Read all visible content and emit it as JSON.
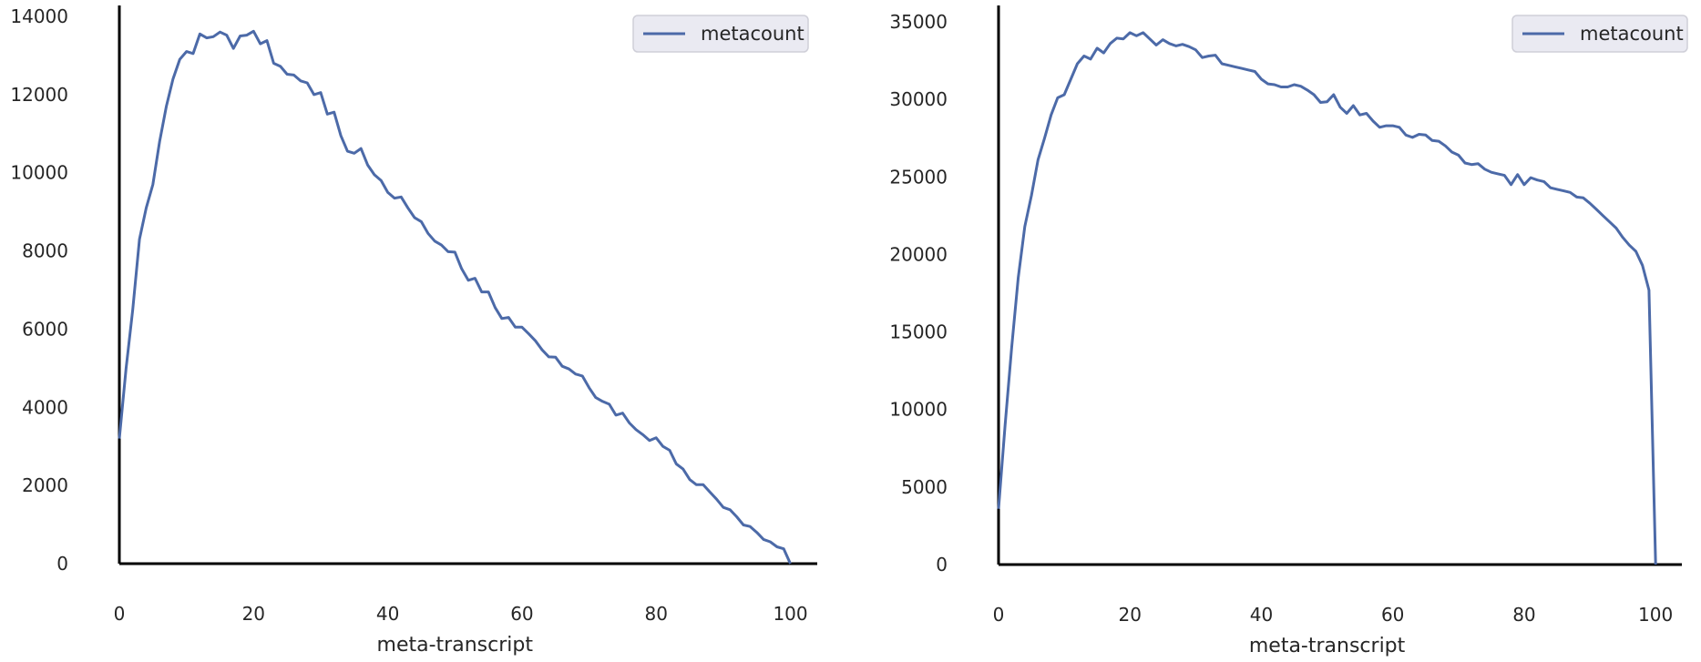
{
  "chart_data": [
    {
      "type": "line",
      "title": "",
      "xlabel": "meta-transcript",
      "ylabel": "",
      "xlim": [
        0,
        104
      ],
      "ylim": [
        0,
        14000
      ],
      "xticks": [
        0,
        20,
        40,
        60,
        80,
        100
      ],
      "yticks": [
        0,
        2000,
        4000,
        6000,
        8000,
        10000,
        12000,
        14000
      ],
      "grid": false,
      "legend": "top-right",
      "line_color": "#4c6aa8",
      "series": [
        {
          "name": "metacount",
          "x": [
            0,
            1,
            2,
            3,
            4,
            5,
            6,
            7,
            8,
            9,
            10,
            11,
            12,
            13,
            14,
            15,
            16,
            17,
            18,
            19,
            20,
            21,
            22,
            23,
            24,
            25,
            26,
            27,
            28,
            29,
            30,
            31,
            32,
            33,
            34,
            35,
            36,
            37,
            38,
            39,
            40,
            41,
            42,
            43,
            44,
            45,
            46,
            47,
            48,
            49,
            50,
            51,
            52,
            53,
            54,
            55,
            56,
            57,
            58,
            59,
            60,
            61,
            62,
            63,
            64,
            65,
            66,
            67,
            68,
            69,
            70,
            71,
            72,
            73,
            74,
            75,
            76,
            77,
            78,
            79,
            80,
            81,
            82,
            83,
            84,
            85,
            86,
            87,
            88,
            89,
            90,
            91,
            92,
            93,
            94,
            95,
            96,
            97,
            98,
            99,
            100
          ],
          "y": [
            3200,
            5000,
            6500,
            8300,
            9100,
            9700,
            10800,
            11700,
            12400,
            12900,
            13100,
            13050,
            13550,
            13450,
            13480,
            13600,
            13520,
            13180,
            13500,
            13520,
            13620,
            13300,
            13380,
            12800,
            12720,
            12520,
            12500,
            12350,
            12300,
            12000,
            12050,
            11500,
            11550,
            10950,
            10550,
            10500,
            10620,
            10200,
            9950,
            9800,
            9500,
            9350,
            9380,
            9100,
            8850,
            8750,
            8450,
            8250,
            8150,
            7980,
            7970,
            7550,
            7250,
            7300,
            6950,
            6950,
            6550,
            6270,
            6300,
            6050,
            6050,
            5880,
            5700,
            5470,
            5290,
            5280,
            5050,
            4980,
            4850,
            4800,
            4500,
            4250,
            4150,
            4080,
            3800,
            3850,
            3600,
            3430,
            3300,
            3150,
            3220,
            3000,
            2900,
            2550,
            2420,
            2150,
            2020,
            2020,
            1830,
            1650,
            1440,
            1380,
            1200,
            990,
            950,
            800,
            620,
            560,
            430,
            380,
            0
          ]
        }
      ]
    },
    {
      "type": "line",
      "title": "",
      "xlabel": "meta-transcript",
      "ylabel": "",
      "xlim": [
        0,
        104
      ],
      "ylim": [
        0,
        35000
      ],
      "xticks": [
        0,
        20,
        40,
        60,
        80,
        100
      ],
      "yticks": [
        0,
        5000,
        10000,
        15000,
        20000,
        25000,
        30000,
        35000
      ],
      "grid": false,
      "legend": "top-right",
      "line_color": "#4c6aa8",
      "series": [
        {
          "name": "metacount",
          "x": [
            0,
            1,
            2,
            3,
            4,
            5,
            6,
            7,
            8,
            9,
            10,
            11,
            12,
            13,
            14,
            15,
            16,
            17,
            18,
            19,
            20,
            21,
            22,
            23,
            24,
            25,
            26,
            27,
            28,
            29,
            30,
            31,
            32,
            33,
            34,
            35,
            36,
            37,
            38,
            39,
            40,
            41,
            42,
            43,
            44,
            45,
            46,
            47,
            48,
            49,
            50,
            51,
            52,
            53,
            54,
            55,
            56,
            57,
            58,
            59,
            60,
            61,
            62,
            63,
            64,
            65,
            66,
            67,
            68,
            69,
            70,
            71,
            72,
            73,
            74,
            75,
            76,
            77,
            78,
            79,
            80,
            81,
            82,
            83,
            84,
            85,
            86,
            87,
            88,
            89,
            90,
            91,
            92,
            93,
            94,
            95,
            96,
            97,
            98,
            99,
            100
          ],
          "y": [
            3600,
            9000,
            14000,
            18500,
            21800,
            23800,
            26100,
            27500,
            29000,
            30100,
            30300,
            31300,
            32300,
            32800,
            32600,
            33300,
            33000,
            33600,
            33950,
            33900,
            34300,
            34100,
            34300,
            33900,
            33500,
            33850,
            33600,
            33450,
            33550,
            33400,
            33200,
            32700,
            32800,
            32850,
            32300,
            32200,
            32100,
            32000,
            31900,
            31800,
            31300,
            31000,
            30950,
            30800,
            30800,
            30950,
            30850,
            30600,
            30300,
            29800,
            29850,
            30300,
            29500,
            29100,
            29600,
            29000,
            29100,
            28600,
            28200,
            28300,
            28300,
            28200,
            27700,
            27550,
            27750,
            27700,
            27350,
            27300,
            27000,
            26600,
            26400,
            25900,
            25800,
            25850,
            25500,
            25300,
            25200,
            25100,
            24500,
            25150,
            24500,
            24950,
            24800,
            24700,
            24300,
            24200,
            24100,
            24000,
            23700,
            23650,
            23300,
            22900,
            22500,
            22100,
            21700,
            21100,
            20600,
            20200,
            19300,
            17700,
            0
          ]
        }
      ]
    }
  ]
}
